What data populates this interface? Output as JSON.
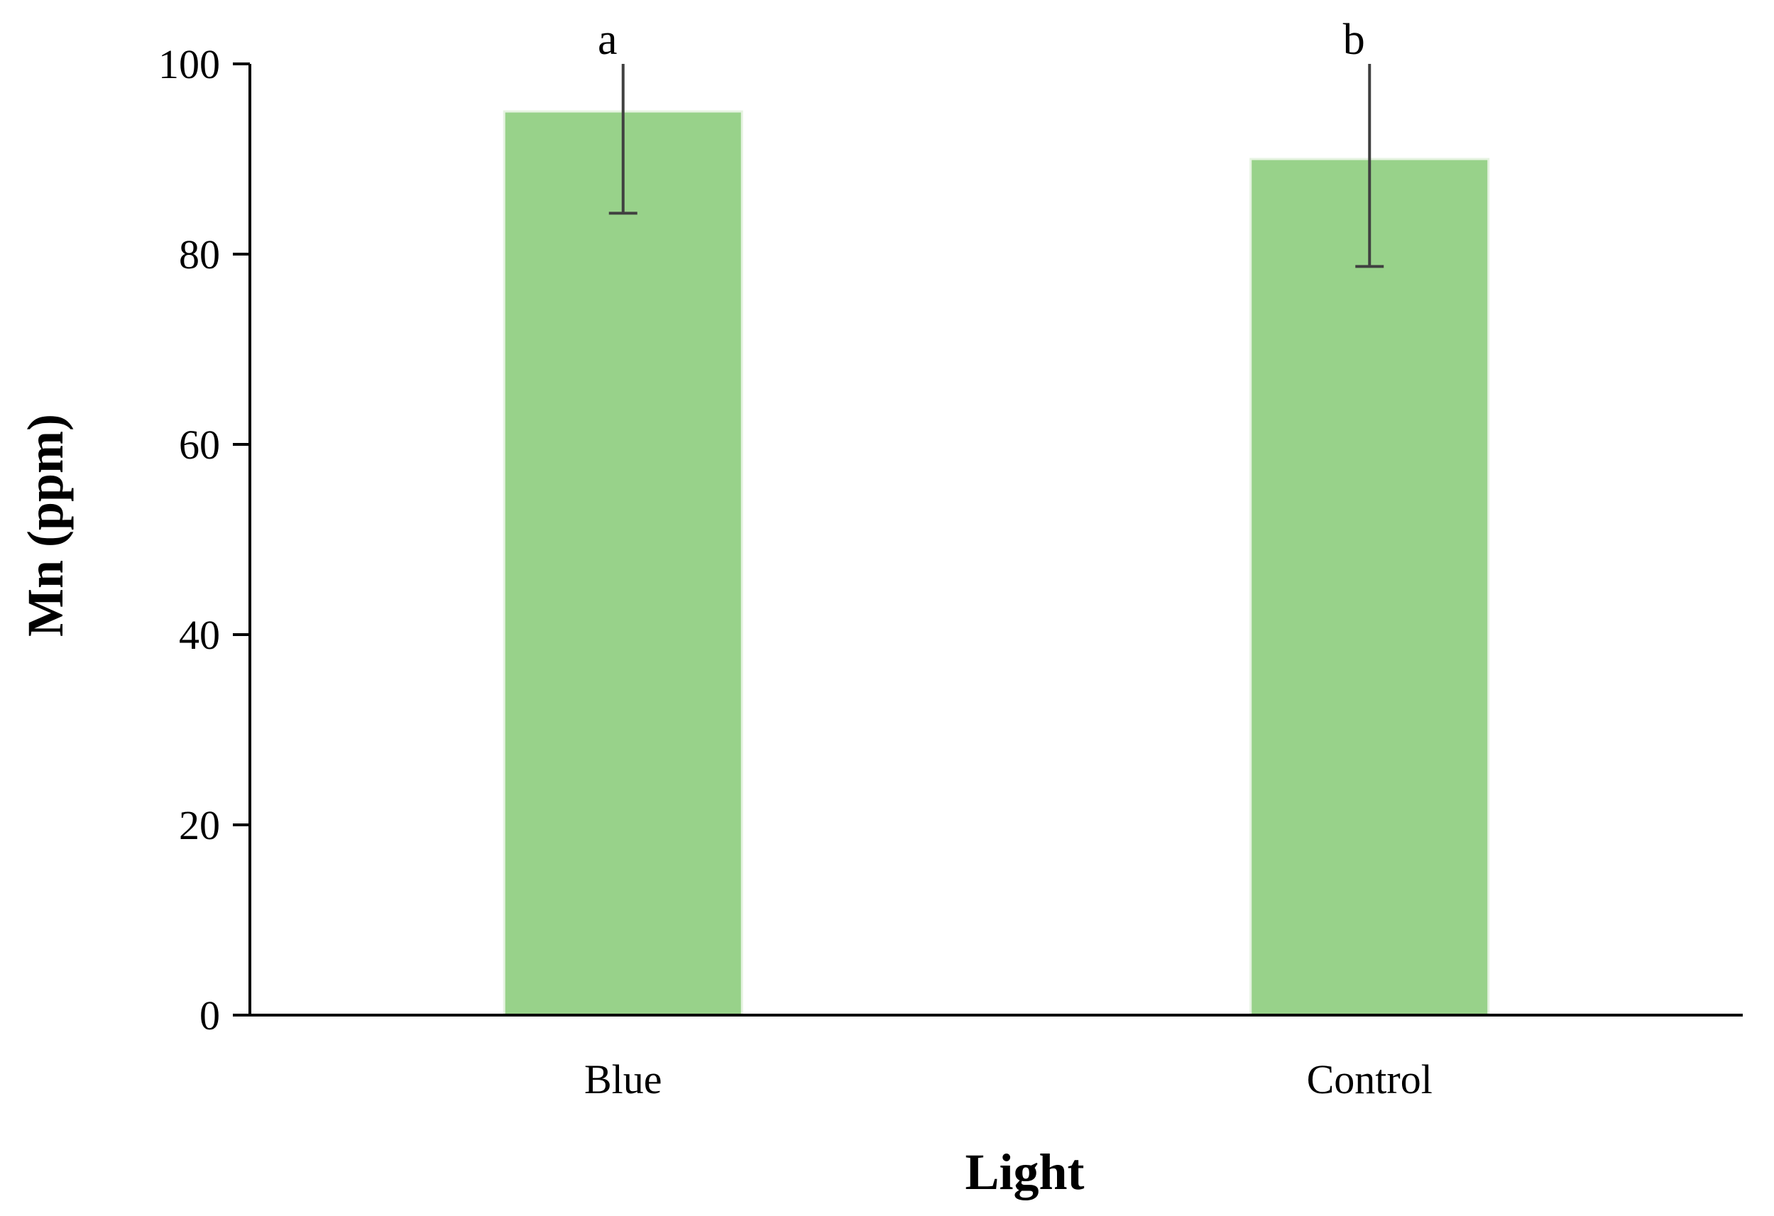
{
  "chart_data": {
    "type": "bar",
    "title": "",
    "xlabel": "Light",
    "ylabel": "Mn (ppm)",
    "categories": [
      "Blue",
      "Control"
    ],
    "values": [
      95,
      90
    ],
    "error_low": [
      84.3,
      78.7
    ],
    "error_high": [
      100,
      100
    ],
    "significance": [
      "a",
      "b"
    ],
    "ylim": [
      0,
      100
    ],
    "yticks": [
      "0",
      "20",
      "40",
      "60",
      "80",
      "100"
    ],
    "grid": false,
    "legend": "none",
    "colors": {
      "bar": "#98d28a",
      "bar_edge": "#e6f3e1",
      "axis": "#000000",
      "error": "#404040"
    }
  }
}
